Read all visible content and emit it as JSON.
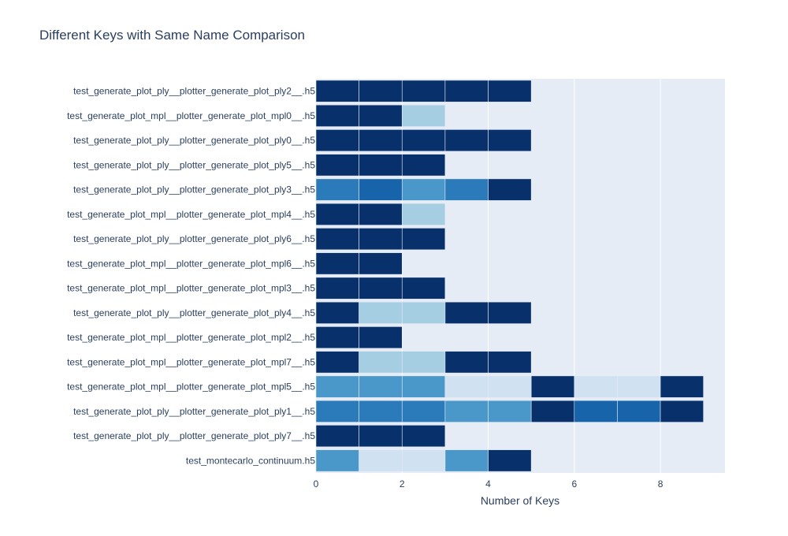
{
  "chart_data": {
    "type": "bar",
    "orientation": "horizontal",
    "stacked": true,
    "title": "Different Keys with Same Name Comparison",
    "xlabel": "Number of Keys",
    "ylabel": "",
    "xlim": [
      0,
      9.5
    ],
    "x_ticks": [
      0,
      2,
      4,
      6,
      8
    ],
    "grid": "vertical",
    "plot_background": "#e5ecf6",
    "segment_value": 1,
    "categories": [
      "test_generate_plot_ply__plotter_generate_plot_ply2__.h5",
      "test_generate_plot_mpl__plotter_generate_plot_mpl0__.h5",
      "test_generate_plot_ply__plotter_generate_plot_ply0__.h5",
      "test_generate_plot_ply__plotter_generate_plot_ply5__.h5",
      "test_generate_plot_ply__plotter_generate_plot_ply3__.h5",
      "test_generate_plot_mpl__plotter_generate_plot_mpl4__.h5",
      "test_generate_plot_ply__plotter_generate_plot_ply6__.h5",
      "test_generate_plot_mpl__plotter_generate_plot_mpl6__.h5",
      "test_generate_plot_mpl__plotter_generate_plot_mpl3__.h5",
      "test_generate_plot_ply__plotter_generate_plot_ply4__.h5",
      "test_generate_plot_mpl__plotter_generate_plot_mpl2__.h5",
      "test_generate_plot_mpl__plotter_generate_plot_mpl7__.h5",
      "test_generate_plot_mpl__plotter_generate_plot_mpl5__.h5",
      "test_generate_plot_ply__plotter_generate_plot_ply1__.h5",
      "test_generate_plot_ply__plotter_generate_plot_ply7__.h5",
      "test_montecarlo_continuum.h5"
    ],
    "segment_colors": [
      [
        "#08306b",
        "#08306b",
        "#08306b",
        "#08306b",
        "#08306b"
      ],
      [
        "#08306b",
        "#08306b",
        "#a6cee3"
      ],
      [
        "#08306b",
        "#08306b",
        "#08306b",
        "#08306b",
        "#08306b"
      ],
      [
        "#08306b",
        "#08306b",
        "#08306b"
      ],
      [
        "#2b7bba",
        "#1764ab",
        "#4a98c9",
        "#2b7bba",
        "#08306b"
      ],
      [
        "#08306b",
        "#08306b",
        "#a6cee3"
      ],
      [
        "#08306b",
        "#08306b",
        "#08306b"
      ],
      [
        "#08306b",
        "#08306b"
      ],
      [
        "#08306b",
        "#08306b",
        "#08306b"
      ],
      [
        "#08306b",
        "#a6cee3",
        "#a6cee3",
        "#08306b",
        "#08306b"
      ],
      [
        "#08306b",
        "#08306b"
      ],
      [
        "#08306b",
        "#a6cee3",
        "#a6cee3",
        "#08306b",
        "#08306b"
      ],
      [
        "#4a98c9",
        "#4a98c9",
        "#4a98c9",
        "#d0e1f2",
        "#d0e1f2",
        "#08306b",
        "#d0e1f2",
        "#d0e1f2",
        "#08306b"
      ],
      [
        "#2b7bba",
        "#2b7bba",
        "#2b7bba",
        "#4a98c9",
        "#4a98c9",
        "#08306b",
        "#1764ab",
        "#1764ab",
        "#08306b"
      ],
      [
        "#08306b",
        "#08306b",
        "#08306b"
      ],
      [
        "#4a98c9",
        "#d0e1f2",
        "#d0e1f2",
        "#4a98c9",
        "#08306b"
      ]
    ]
  }
}
